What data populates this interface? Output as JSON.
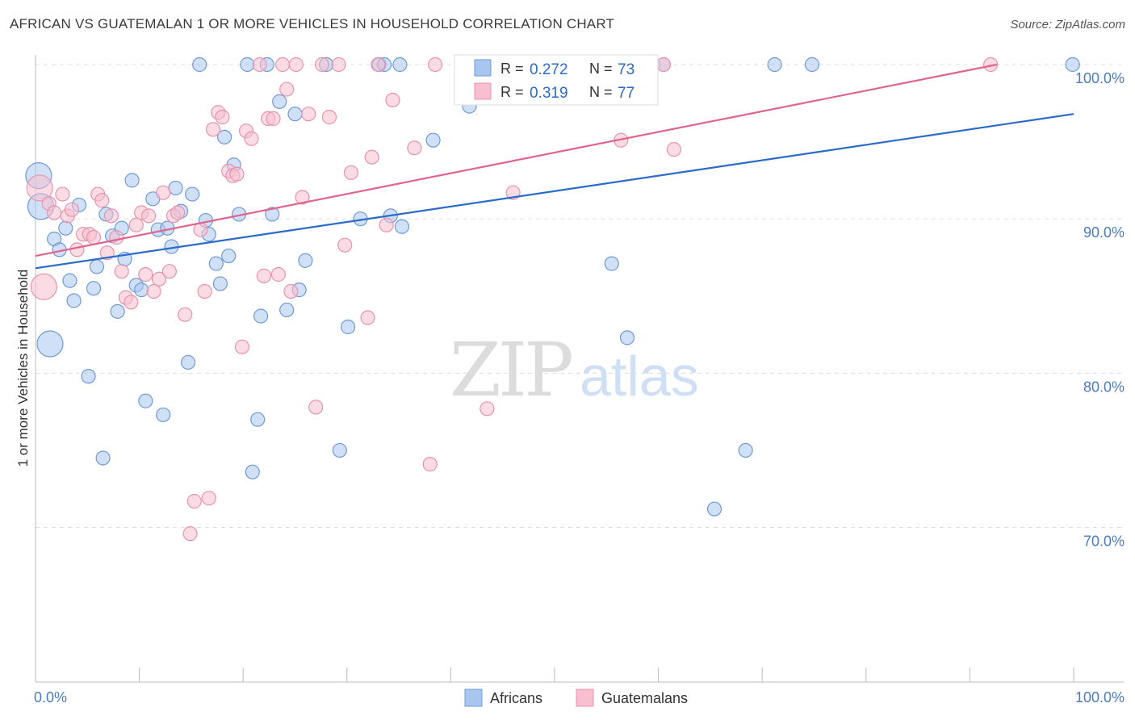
{
  "title": "AFRICAN VS GUATEMALAN 1 OR MORE VEHICLES IN HOUSEHOLD CORRELATION CHART",
  "source": "Source: ZipAtlas.com",
  "watermark": {
    "zip": "ZIP",
    "atlas": "atlas"
  },
  "colors": {
    "africans_fill": "#a9c6ee",
    "africans_stroke": "#6f9ad6",
    "africans_line": "#2a6bc9",
    "guatemalans_fill": "#f7bfd0",
    "guatemalans_stroke": "#e893ad",
    "guatemalans_line": "#e0648e",
    "tick_label": "#4a7cc0",
    "grid": "#dddddd"
  },
  "legend": {
    "top": [
      {
        "r_label": "R =",
        "r_value": "0.272",
        "n_label": "N =",
        "n_value": "73"
      },
      {
        "r_label": "R =",
        "r_value": "0.319",
        "n_label": "N =",
        "n_value": "77"
      }
    ],
    "bottom": [
      "Africans",
      "Guatemalans"
    ]
  },
  "chart_data": {
    "type": "scatter",
    "title": "AFRICAN VS GUATEMALAN 1 OR MORE VEHICLES IN HOUSEHOLD CORRELATION CHART",
    "xlabel": "",
    "ylabel": "1 or more Vehicles in Household",
    "xlim": [
      0,
      100
    ],
    "ylim": [
      61,
      101
    ],
    "x_tick_labels": [
      "0.0%",
      "100.0%"
    ],
    "y_ticks": [
      70,
      80,
      90,
      100
    ],
    "y_tick_labels": [
      "70.0%",
      "80.0%",
      "90.0%",
      "100.0%"
    ],
    "grid": true,
    "legend_position": "top-center",
    "series": [
      {
        "name": "Africans",
        "r": 0.272,
        "n": 73,
        "trend": {
          "x": [
            0,
            100
          ],
          "y": [
            86.8,
            96.8
          ]
        },
        "points": [
          {
            "x": 0.3,
            "y": 92.8,
            "big": true
          },
          {
            "x": 0.5,
            "y": 90.8,
            "big": true
          },
          {
            "x": 1.4,
            "y": 81.9,
            "big": true
          },
          {
            "x": 1.8,
            "y": 88.7
          },
          {
            "x": 2.3,
            "y": 88.0
          },
          {
            "x": 2.9,
            "y": 89.4
          },
          {
            "x": 3.3,
            "y": 86.0
          },
          {
            "x": 3.7,
            "y": 84.7
          },
          {
            "x": 4.2,
            "y": 90.9
          },
          {
            "x": 5.1,
            "y": 79.8
          },
          {
            "x": 5.6,
            "y": 85.5
          },
          {
            "x": 5.9,
            "y": 86.9
          },
          {
            "x": 6.5,
            "y": 74.5
          },
          {
            "x": 6.8,
            "y": 90.3
          },
          {
            "x": 7.4,
            "y": 88.9
          },
          {
            "x": 7.9,
            "y": 84.0
          },
          {
            "x": 8.3,
            "y": 89.4
          },
          {
            "x": 8.6,
            "y": 87.4
          },
          {
            "x": 9.3,
            "y": 92.5
          },
          {
            "x": 9.7,
            "y": 85.7
          },
          {
            "x": 10.2,
            "y": 85.4
          },
          {
            "x": 10.6,
            "y": 78.2
          },
          {
            "x": 11.3,
            "y": 91.3
          },
          {
            "x": 11.8,
            "y": 89.3
          },
          {
            "x": 12.3,
            "y": 77.3
          },
          {
            "x": 12.7,
            "y": 89.4
          },
          {
            "x": 13.1,
            "y": 88.2
          },
          {
            "x": 13.5,
            "y": 92.0
          },
          {
            "x": 14.0,
            "y": 90.5
          },
          {
            "x": 14.7,
            "y": 80.7
          },
          {
            "x": 15.1,
            "y": 91.6
          },
          {
            "x": 15.8,
            "y": 100.0
          },
          {
            "x": 16.4,
            "y": 89.9
          },
          {
            "x": 16.7,
            "y": 89.0
          },
          {
            "x": 17.4,
            "y": 87.1
          },
          {
            "x": 17.8,
            "y": 85.8
          },
          {
            "x": 18.2,
            "y": 95.3
          },
          {
            "x": 18.6,
            "y": 87.6
          },
          {
            "x": 19.1,
            "y": 93.5
          },
          {
            "x": 19.6,
            "y": 90.3
          },
          {
            "x": 20.4,
            "y": 100.0
          },
          {
            "x": 20.9,
            "y": 73.6
          },
          {
            "x": 21.4,
            "y": 77.0
          },
          {
            "x": 21.7,
            "y": 83.7
          },
          {
            "x": 22.3,
            "y": 100.0
          },
          {
            "x": 22.8,
            "y": 90.3
          },
          {
            "x": 23.5,
            "y": 97.6
          },
          {
            "x": 24.2,
            "y": 84.1
          },
          {
            "x": 25.0,
            "y": 96.8
          },
          {
            "x": 25.4,
            "y": 85.4
          },
          {
            "x": 26.0,
            "y": 87.3
          },
          {
            "x": 28.0,
            "y": 100.0
          },
          {
            "x": 29.3,
            "y": 75.0
          },
          {
            "x": 30.1,
            "y": 83.0
          },
          {
            "x": 31.3,
            "y": 90.0
          },
          {
            "x": 33.1,
            "y": 100.0
          },
          {
            "x": 33.6,
            "y": 100.0
          },
          {
            "x": 34.2,
            "y": 90.2
          },
          {
            "x": 35.1,
            "y": 100.0
          },
          {
            "x": 35.3,
            "y": 89.5
          },
          {
            "x": 38.3,
            "y": 95.1
          },
          {
            "x": 41.8,
            "y": 97.3
          },
          {
            "x": 42.7,
            "y": 100.0
          },
          {
            "x": 52.3,
            "y": 100.0
          },
          {
            "x": 55.5,
            "y": 87.1
          },
          {
            "x": 57.0,
            "y": 82.3
          },
          {
            "x": 59.5,
            "y": 100.0
          },
          {
            "x": 60.5,
            "y": 100.0
          },
          {
            "x": 65.4,
            "y": 71.2
          },
          {
            "x": 68.4,
            "y": 75.0
          },
          {
            "x": 71.2,
            "y": 100.0
          },
          {
            "x": 74.8,
            "y": 100.0
          },
          {
            "x": 99.9,
            "y": 100.0
          }
        ]
      },
      {
        "name": "Guatemalans",
        "r": 0.319,
        "n": 77,
        "trend": {
          "x": [
            0,
            92.6
          ],
          "y": [
            87.6,
            100.0
          ]
        },
        "points": [
          {
            "x": 0.4,
            "y": 92.0,
            "big": true
          },
          {
            "x": 0.8,
            "y": 85.6,
            "big": true
          },
          {
            "x": 1.3,
            "y": 91.0
          },
          {
            "x": 1.8,
            "y": 90.4
          },
          {
            "x": 2.6,
            "y": 91.6
          },
          {
            "x": 3.1,
            "y": 90.2
          },
          {
            "x": 3.5,
            "y": 90.6
          },
          {
            "x": 4.0,
            "y": 88.0
          },
          {
            "x": 4.6,
            "y": 89.0
          },
          {
            "x": 5.2,
            "y": 89.0
          },
          {
            "x": 5.6,
            "y": 88.8
          },
          {
            "x": 6.0,
            "y": 91.6
          },
          {
            "x": 6.4,
            "y": 91.2
          },
          {
            "x": 6.9,
            "y": 87.8
          },
          {
            "x": 7.3,
            "y": 90.2
          },
          {
            "x": 7.8,
            "y": 88.8
          },
          {
            "x": 8.3,
            "y": 86.6
          },
          {
            "x": 8.7,
            "y": 84.9
          },
          {
            "x": 9.2,
            "y": 84.6
          },
          {
            "x": 9.7,
            "y": 89.6
          },
          {
            "x": 10.2,
            "y": 90.4
          },
          {
            "x": 10.6,
            "y": 86.4
          },
          {
            "x": 10.9,
            "y": 90.2
          },
          {
            "x": 11.4,
            "y": 85.3
          },
          {
            "x": 11.9,
            "y": 86.1
          },
          {
            "x": 12.3,
            "y": 91.7
          },
          {
            "x": 12.9,
            "y": 86.6
          },
          {
            "x": 13.3,
            "y": 90.2
          },
          {
            "x": 13.7,
            "y": 90.4
          },
          {
            "x": 14.4,
            "y": 83.8
          },
          {
            "x": 14.9,
            "y": 69.6
          },
          {
            "x": 15.3,
            "y": 71.7
          },
          {
            "x": 15.9,
            "y": 89.3
          },
          {
            "x": 16.3,
            "y": 85.3
          },
          {
            "x": 16.7,
            "y": 71.9
          },
          {
            "x": 17.1,
            "y": 95.8
          },
          {
            "x": 17.6,
            "y": 96.9
          },
          {
            "x": 18.0,
            "y": 96.6
          },
          {
            "x": 18.6,
            "y": 93.1
          },
          {
            "x": 19.0,
            "y": 92.8
          },
          {
            "x": 19.4,
            "y": 92.9
          },
          {
            "x": 19.9,
            "y": 81.7
          },
          {
            "x": 20.3,
            "y": 95.7
          },
          {
            "x": 20.8,
            "y": 95.2
          },
          {
            "x": 21.6,
            "y": 100.0
          },
          {
            "x": 22.0,
            "y": 86.3
          },
          {
            "x": 22.4,
            "y": 96.5
          },
          {
            "x": 22.9,
            "y": 96.5
          },
          {
            "x": 23.4,
            "y": 86.4
          },
          {
            "x": 23.8,
            "y": 100.0
          },
          {
            "x": 24.2,
            "y": 98.4
          },
          {
            "x": 24.6,
            "y": 85.3
          },
          {
            "x": 25.1,
            "y": 100.0
          },
          {
            "x": 25.7,
            "y": 91.4
          },
          {
            "x": 26.3,
            "y": 96.8
          },
          {
            "x": 27.0,
            "y": 77.8
          },
          {
            "x": 27.6,
            "y": 100.0
          },
          {
            "x": 28.3,
            "y": 96.6
          },
          {
            "x": 29.2,
            "y": 100.0
          },
          {
            "x": 29.8,
            "y": 88.3
          },
          {
            "x": 30.4,
            "y": 93.0
          },
          {
            "x": 32.0,
            "y": 83.6
          },
          {
            "x": 32.4,
            "y": 94.0
          },
          {
            "x": 33.0,
            "y": 100.0
          },
          {
            "x": 33.8,
            "y": 89.6
          },
          {
            "x": 34.4,
            "y": 97.7
          },
          {
            "x": 36.5,
            "y": 94.6
          },
          {
            "x": 38.0,
            "y": 74.1
          },
          {
            "x": 38.5,
            "y": 100.0
          },
          {
            "x": 43.5,
            "y": 77.7
          },
          {
            "x": 46.0,
            "y": 91.7
          },
          {
            "x": 51.6,
            "y": 100.0
          },
          {
            "x": 56.4,
            "y": 95.1
          },
          {
            "x": 59.0,
            "y": 100.0
          },
          {
            "x": 60.5,
            "y": 100.0
          },
          {
            "x": 61.5,
            "y": 94.5
          },
          {
            "x": 92.0,
            "y": 100.0
          }
        ]
      }
    ]
  }
}
